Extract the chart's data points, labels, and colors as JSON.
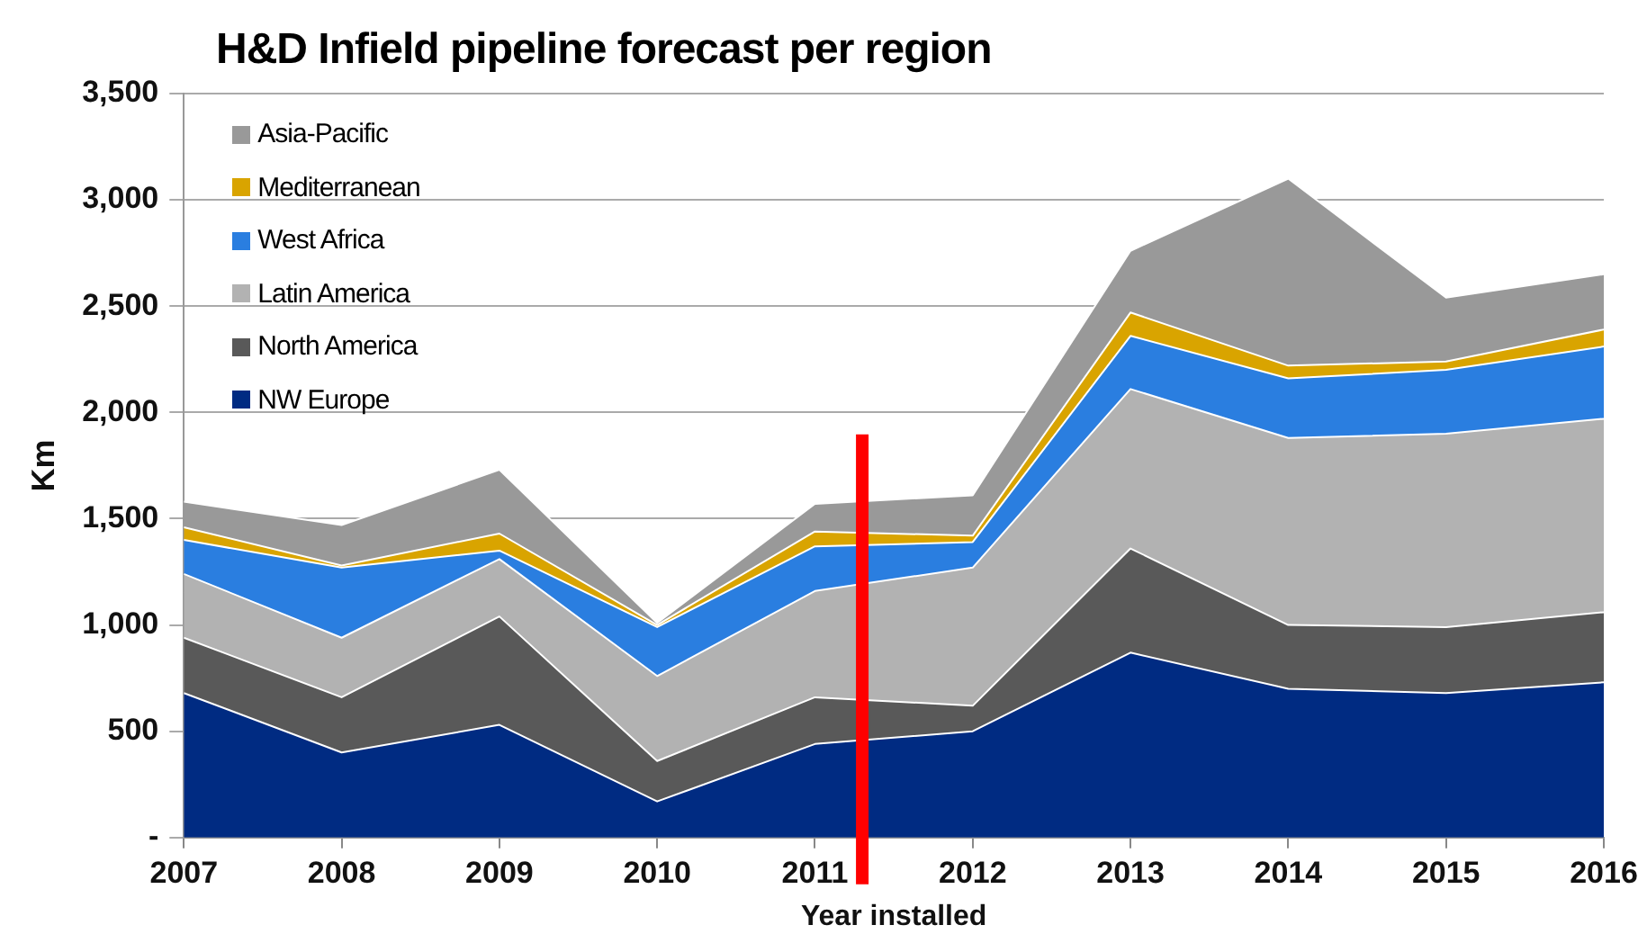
{
  "chart_data": {
    "type": "area",
    "title": "H&D Infield pipeline forecast per region",
    "xlabel": "Year installed",
    "ylabel": "Km",
    "stacked": true,
    "grid": "y",
    "legend": "top left",
    "x": [
      2007,
      2008,
      2009,
      2010,
      2011,
      2012,
      2013,
      2014,
      2015,
      2016
    ],
    "xlim": [
      2007,
      2016
    ],
    "xticks": [
      2007,
      2008,
      2009,
      2010,
      2011,
      2012,
      2013,
      2014,
      2015,
      2016
    ],
    "ylim": [
      0,
      3500
    ],
    "yticks": [
      {
        "value": 0,
        "label": "-"
      },
      {
        "value": 500,
        "label": "500"
      },
      {
        "value": 1000,
        "label": "1,000"
      },
      {
        "value": 1500,
        "label": "1,500"
      },
      {
        "value": 2000,
        "label": "2,000"
      },
      {
        "value": 2500,
        "label": "2,500"
      },
      {
        "value": 3000,
        "label": "3,000"
      },
      {
        "value": 3500,
        "label": "3,500"
      }
    ],
    "ref_lines": [
      {
        "axis": "x",
        "value": 2011.3,
        "color": "#ff0000"
      }
    ],
    "series": [
      {
        "name": "NW Europe",
        "color": "#002b82",
        "values": [
          680,
          400,
          530,
          170,
          440,
          500,
          870,
          700,
          680,
          730
        ]
      },
      {
        "name": "North America",
        "color": "#595959",
        "values": [
          260,
          260,
          510,
          190,
          220,
          120,
          490,
          300,
          310,
          330
        ]
      },
      {
        "name": "Latin America",
        "color": "#b2b2b2",
        "values": [
          300,
          280,
          270,
          400,
          500,
          650,
          750,
          880,
          910,
          910
        ]
      },
      {
        "name": "West Africa",
        "color": "#2a7ee0",
        "values": [
          160,
          330,
          40,
          230,
          210,
          120,
          250,
          280,
          300,
          340
        ]
      },
      {
        "name": "Mediterranean",
        "color": "#d9a400",
        "values": [
          60,
          10,
          80,
          10,
          70,
          30,
          110,
          60,
          40,
          80
        ]
      },
      {
        "name": "Asia-Pacific",
        "color": "#999999",
        "values": [
          120,
          190,
          300,
          10,
          130,
          190,
          290,
          880,
          300,
          260
        ]
      }
    ]
  }
}
